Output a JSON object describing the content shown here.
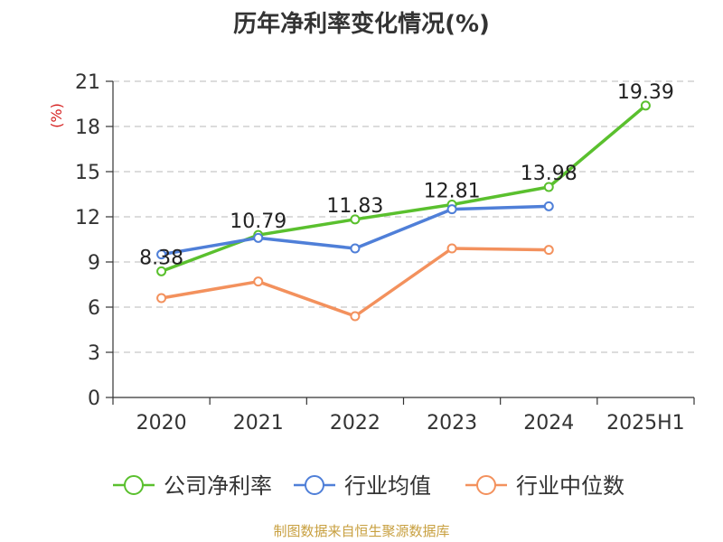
{
  "chart_data": {
    "type": "line",
    "title": "历年净利率变化情况(%)",
    "ylabel": "(%)",
    "categories": [
      "2020",
      "2021",
      "2022",
      "2023",
      "2024",
      "2025H1"
    ],
    "ylim": [
      0,
      21
    ],
    "yticks": [
      0,
      3,
      6,
      9,
      12,
      15,
      18,
      21
    ],
    "grid": true,
    "legend_position": "bottom",
    "series": [
      {
        "name": "公司净利率",
        "color": "#5ac02e",
        "values": [
          8.38,
          10.79,
          11.83,
          12.81,
          13.98,
          19.39
        ],
        "labels": [
          "8.38",
          "10.79",
          "11.83",
          "12.81",
          "13.98",
          "19.39"
        ]
      },
      {
        "name": "行业均值",
        "color": "#4f7fd8",
        "values": [
          9.5,
          10.6,
          9.9,
          12.5,
          12.7,
          null
        ]
      },
      {
        "name": "行业中位数",
        "color": "#f3915d",
        "values": [
          6.6,
          7.7,
          5.4,
          9.9,
          9.8,
          null
        ]
      }
    ]
  },
  "source": "制图数据来自恒生聚源数据库"
}
